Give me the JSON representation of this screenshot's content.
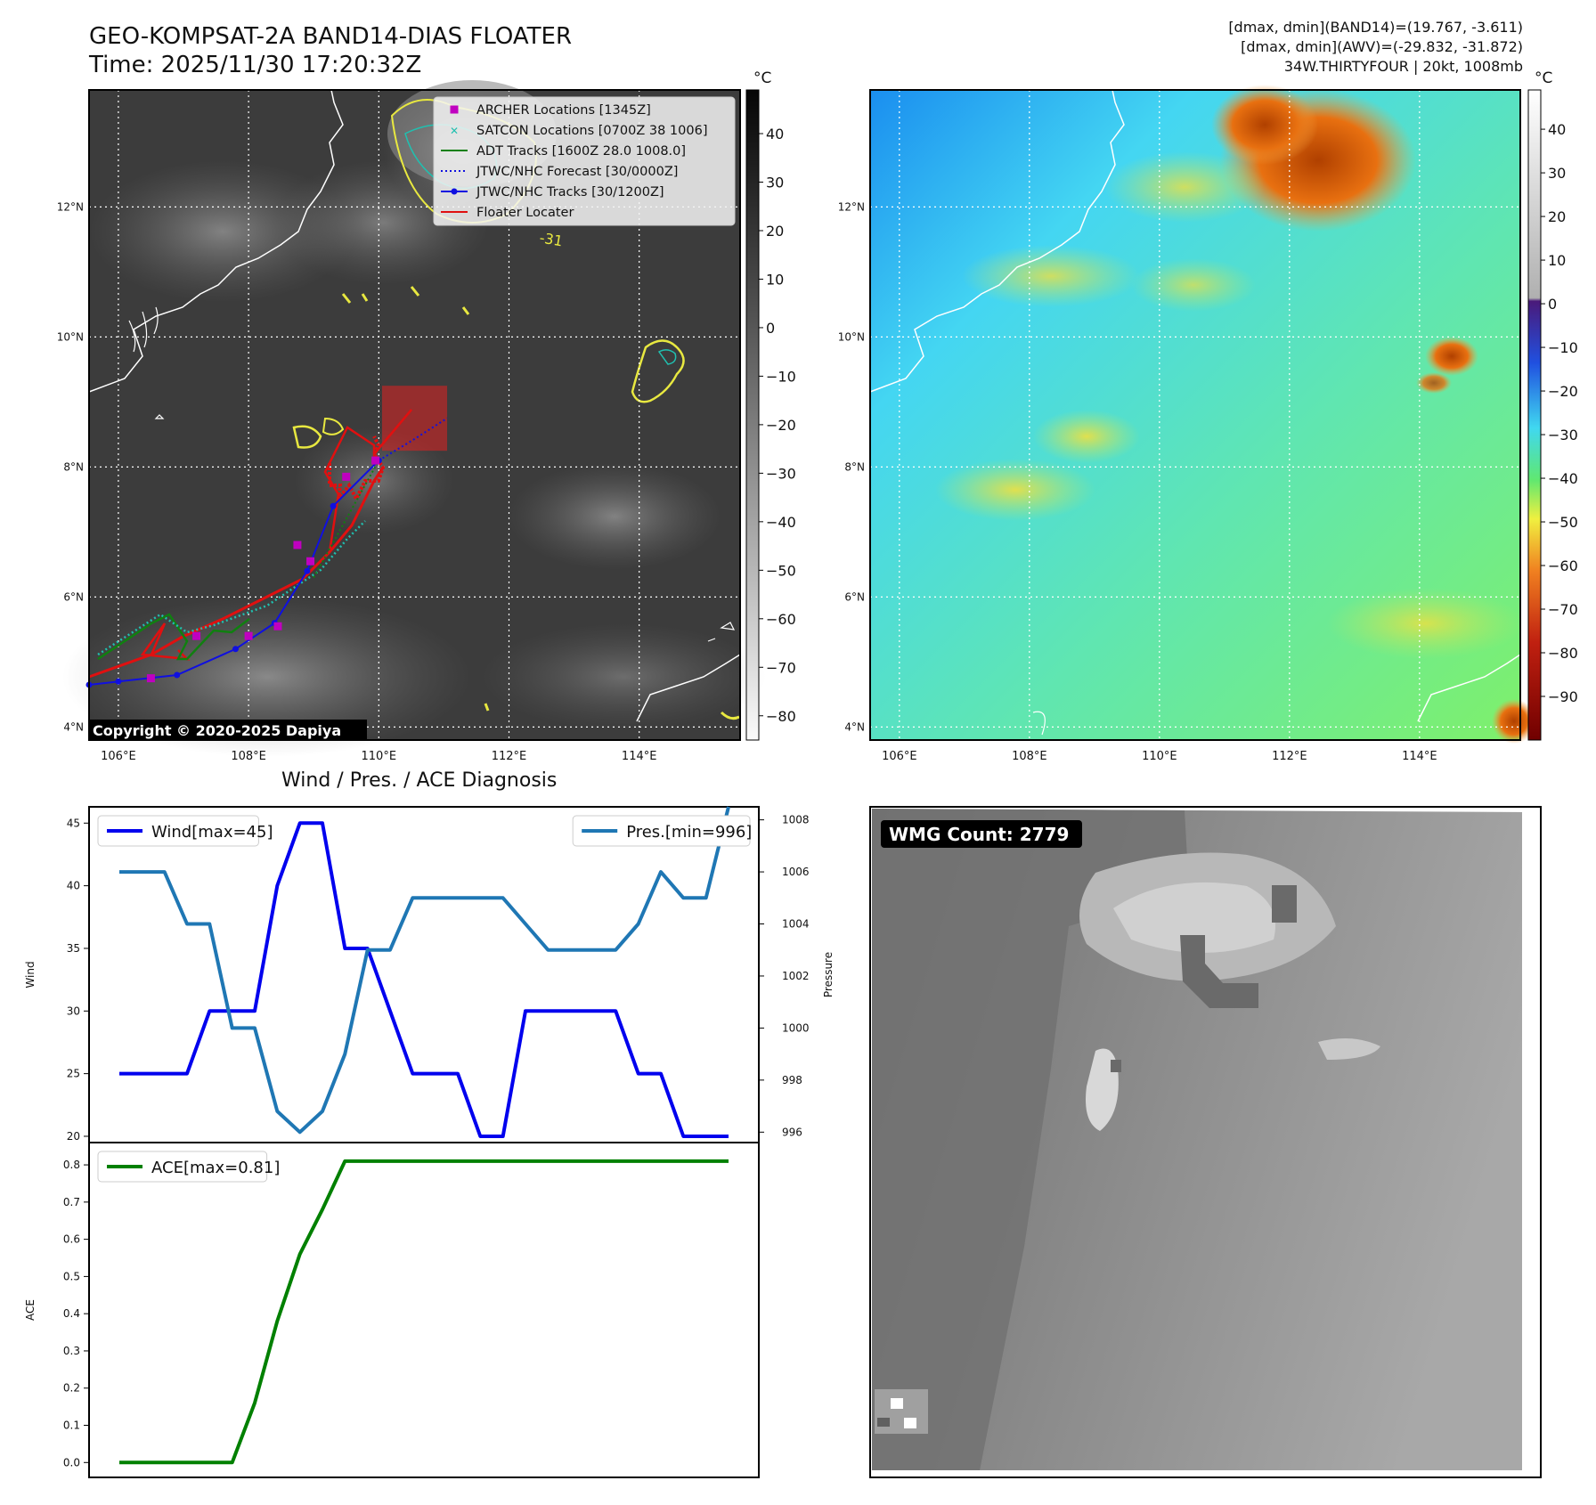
{
  "header": {
    "title": "GEO-KOMPSAT-2A BAND14-DIAS FLOATER",
    "time": "Time: 2025/11/30 17:20:32Z",
    "stat1": "[dmax, dmin](BAND14)=(19.767, -3.611)",
    "stat2": "[dmax, dmin](AWV)=(-29.832, -31.872)",
    "storm": "34W.THIRTYFOUR | 20kt, 1008mb"
  },
  "map": {
    "lat_labels": [
      "12°N",
      "10°N",
      "8°N",
      "6°N",
      "4°N"
    ],
    "lat_values": [
      12,
      10,
      8,
      6,
      4
    ],
    "lon_labels": [
      "106°E",
      "108°E",
      "110°E",
      "112°E",
      "114°E"
    ],
    "lon_values": [
      106,
      108,
      110,
      112,
      114
    ],
    "lat_range": [
      3.8,
      13.8
    ],
    "lon_range": [
      105.55,
      115.55
    ],
    "copyright": "Copyright © 2020-2025 Dapiya",
    "contour_label": "-31",
    "legend": [
      {
        "label": "ARCHER Locations [1345Z]",
        "symbol": "square",
        "color": "#c000c0"
      },
      {
        "label": "SATCON Locations [0700Z 38 1006]",
        "symbol": "x",
        "color": "#20c0b0"
      },
      {
        "label": "ADT Tracks [1600Z 28.0 1008.0]",
        "symbol": "line",
        "color": "#108010"
      },
      {
        "label": "JTWC/NHC Forecast [30/0000Z]",
        "symbol": "dotted",
        "color": "#1010e0"
      },
      {
        "label": "JTWC/NHC Tracks [30/1200Z]",
        "symbol": "line-dot",
        "color": "#1010e0"
      },
      {
        "label": "Floater Locater",
        "symbol": "line",
        "color": "#e01010"
      }
    ],
    "jtwc_track": [
      [
        105.55,
        4.65
      ],
      [
        106.0,
        4.7
      ],
      [
        106.9,
        4.8
      ],
      [
        107.8,
        5.2
      ],
      [
        108.4,
        5.6
      ],
      [
        108.9,
        6.4
      ],
      [
        109.3,
        7.4
      ],
      [
        110.0,
        8.1
      ]
    ],
    "jtwc_forecast": [
      [
        110.0,
        8.1
      ],
      [
        110.5,
        8.4
      ],
      [
        111.05,
        8.75
      ]
    ],
    "archer_points": [
      [
        106.5,
        4.75
      ],
      [
        107.2,
        5.4
      ],
      [
        108.0,
        5.4
      ],
      [
        108.45,
        5.55
      ],
      [
        108.75,
        6.8
      ],
      [
        108.95,
        6.55
      ],
      [
        109.5,
        7.85
      ],
      [
        109.95,
        8.1
      ]
    ],
    "floater_box": {
      "lon_min": 110.05,
      "lon_max": 111.05,
      "lat_min": 8.25,
      "lat_max": 9.25
    },
    "gray_colorbar": {
      "unit": "°C",
      "ticks": [
        40,
        30,
        20,
        10,
        0,
        -10,
        -20,
        -30,
        -40,
        -50,
        -60,
        -70,
        -80
      ],
      "range": [
        -85,
        49
      ]
    },
    "awv_colorbar": {
      "unit": "°C",
      "ticks": [
        40,
        30,
        20,
        10,
        0,
        -10,
        -20,
        -30,
        -40,
        -50,
        -60,
        -70,
        -80,
        -90
      ],
      "range": [
        -100,
        49
      ]
    }
  },
  "wmg": {
    "label": "WMG Count: 2779"
  },
  "chart_data": [
    {
      "type": "line",
      "title": "Wind / Pres. / ACE Diagnosis",
      "x": [
        0,
        1,
        2,
        3,
        4,
        5,
        6,
        7,
        8,
        9,
        10,
        11,
        12,
        13,
        14,
        15,
        16,
        17,
        18,
        19,
        20,
        21,
        22,
        23,
        24,
        25,
        26,
        27
      ],
      "series": [
        {
          "name": "Wind[max=45]",
          "axis": "left",
          "color": "#0000ee",
          "values": [
            25,
            25,
            25,
            25,
            30,
            30,
            30,
            40,
            45,
            45,
            35,
            35,
            30,
            25,
            25,
            25,
            20,
            20,
            30,
            30,
            30,
            30,
            30,
            25,
            25,
            20,
            20,
            20
          ]
        },
        {
          "name": "Pres.[min=996]",
          "axis": "right",
          "color": "#1f77b4",
          "values": [
            1006,
            1006,
            1006,
            1004,
            1004,
            1000,
            1000,
            996.8,
            996,
            996.8,
            999,
            1003,
            1003,
            1005,
            1005,
            1005,
            1005,
            1005,
            1004,
            1003,
            1003,
            1003,
            1003,
            1004,
            1006,
            1005,
            1005,
            1008.5
          ]
        }
      ],
      "ylabel": "Wind",
      "y2label": "Pressure",
      "ylim": [
        19.5,
        46.3
      ],
      "y2lim": [
        995.6,
        1008.5
      ],
      "yticks": [
        20,
        25,
        30,
        35,
        40,
        45
      ],
      "y2ticks": [
        996,
        998,
        1000,
        1002,
        1004,
        1006,
        1008
      ]
    },
    {
      "type": "line",
      "x": [
        0,
        1,
        2,
        3,
        4,
        5,
        6,
        7,
        8,
        9,
        10,
        11,
        12,
        13,
        14,
        15,
        16,
        17,
        18,
        19,
        20,
        21,
        22,
        23,
        24,
        25,
        26,
        27
      ],
      "series": [
        {
          "name": "ACE[max=0.81]",
          "axis": "left",
          "color": "#008000",
          "values": [
            0,
            0,
            0,
            0,
            0,
            0,
            0.16,
            0.38,
            0.56,
            0.68,
            0.81,
            0.81,
            0.81,
            0.81,
            0.81,
            0.81,
            0.81,
            0.81,
            0.81,
            0.81,
            0.81,
            0.81,
            0.81,
            0.81,
            0.81,
            0.81,
            0.81,
            0.81
          ]
        }
      ],
      "ylabel": "ACE",
      "ylim": [
        -0.04,
        0.86
      ],
      "yticks": [
        0.0,
        0.1,
        0.2,
        0.3,
        0.4,
        0.5,
        0.6,
        0.7,
        0.8
      ],
      "ytick_labels": [
        "0.0",
        "0.1",
        "0.2",
        "0.3",
        "0.4",
        "0.5",
        "0.6",
        "0.7",
        "0.8"
      ]
    }
  ]
}
